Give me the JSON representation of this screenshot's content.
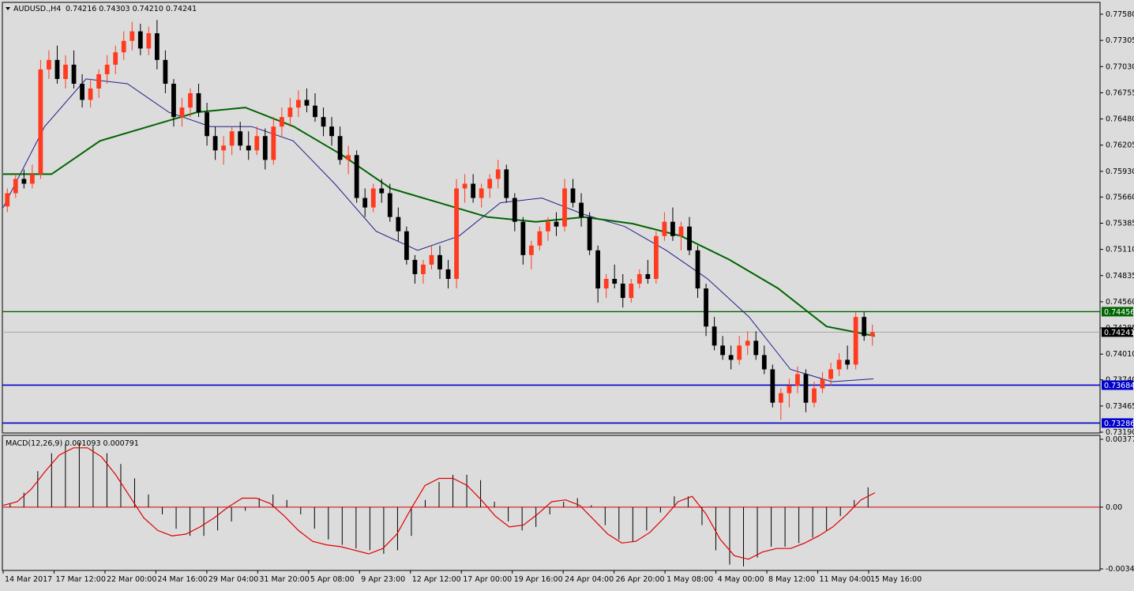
{
  "header": {
    "symbol": "AUDUSD.,H4",
    "ohlc": "0.74216 0.74303 0.74210 0.74241"
  },
  "colors": {
    "background": "#dcdcdc",
    "bull_candle": "#ff3b1f",
    "bear_candle": "#000000",
    "ma_fast": "#1e1e8c",
    "ma_slow": "#006400",
    "h_line_green": "#006400",
    "h_line_blue": "#0000cc",
    "macd_hist": "#000000",
    "macd_signal": "#e00000",
    "zero_line": "#cc0000"
  },
  "chart_data": [
    {
      "type": "candlestick",
      "title": "AUDUSD.,H4",
      "ylim": [
        0.7319,
        0.7758
      ],
      "y_ticks": [
        "0.77580",
        "0.77305",
        "0.77030",
        "0.76755",
        "0.76480",
        "0.76205",
        "0.75930",
        "0.75660",
        "0.75385",
        "0.75110",
        "0.74835",
        "0.74560",
        "0.74285",
        "0.74010",
        "0.73740",
        "0.73465",
        "0.73190"
      ],
      "x_ticks": [
        "14 Mar 2017",
        "17 Mar 12:00",
        "22 Mar 00:00",
        "24 Mar 16:00",
        "29 Mar 04:00",
        "31 Mar 20:00",
        "5 Apr 08:00",
        "9 Apr 23:00",
        "12 Apr 12:00",
        "17 Apr 00:00",
        "19 Apr 16:00",
        "24 Apr 04:00",
        "26 Apr 20:00",
        "1 May 08:00",
        "4 May 00:00",
        "8 May 12:00",
        "11 May 04:00",
        "15 May 16:00"
      ],
      "candles": [
        [
          0.7556,
          0.7575,
          0.755,
          0.757
        ],
        [
          0.757,
          0.759,
          0.7565,
          0.7585
        ],
        [
          0.7585,
          0.7595,
          0.7575,
          0.758
        ],
        [
          0.758,
          0.76,
          0.7575,
          0.759
        ],
        [
          0.759,
          0.771,
          0.7585,
          0.77
        ],
        [
          0.77,
          0.772,
          0.769,
          0.771
        ],
        [
          0.771,
          0.7725,
          0.7685,
          0.769
        ],
        [
          0.769,
          0.7715,
          0.768,
          0.7705
        ],
        [
          0.7705,
          0.772,
          0.768,
          0.7685
        ],
        [
          0.7685,
          0.7695,
          0.766,
          0.7668
        ],
        [
          0.7668,
          0.769,
          0.766,
          0.768
        ],
        [
          0.768,
          0.77,
          0.767,
          0.7695
        ],
        [
          0.7695,
          0.7715,
          0.7685,
          0.7705
        ],
        [
          0.7705,
          0.7725,
          0.7695,
          0.7718
        ],
        [
          0.7718,
          0.774,
          0.771,
          0.773
        ],
        [
          0.773,
          0.775,
          0.772,
          0.774
        ],
        [
          0.774,
          0.7748,
          0.7715,
          0.7722
        ],
        [
          0.7722,
          0.7745,
          0.7715,
          0.7738
        ],
        [
          0.7738,
          0.7752,
          0.77,
          0.771
        ],
        [
          0.771,
          0.772,
          0.7675,
          0.7685
        ],
        [
          0.7685,
          0.769,
          0.764,
          0.765
        ],
        [
          0.765,
          0.767,
          0.764,
          0.766
        ],
        [
          0.766,
          0.768,
          0.765,
          0.7675
        ],
        [
          0.7675,
          0.7685,
          0.765,
          0.7655
        ],
        [
          0.7655,
          0.7665,
          0.762,
          0.763
        ],
        [
          0.763,
          0.764,
          0.7605,
          0.7615
        ],
        [
          0.7615,
          0.763,
          0.76,
          0.762
        ],
        [
          0.762,
          0.764,
          0.761,
          0.7635
        ],
        [
          0.7635,
          0.7645,
          0.7615,
          0.762
        ],
        [
          0.762,
          0.7635,
          0.7605,
          0.7615
        ],
        [
          0.7615,
          0.764,
          0.761,
          0.763
        ],
        [
          0.763,
          0.7638,
          0.7595,
          0.7605
        ],
        [
          0.7605,
          0.765,
          0.76,
          0.764
        ],
        [
          0.764,
          0.766,
          0.763,
          0.765
        ],
        [
          0.765,
          0.767,
          0.764,
          0.766
        ],
        [
          0.766,
          0.7678,
          0.765,
          0.7668
        ],
        [
          0.7668,
          0.768,
          0.7655,
          0.7662
        ],
        [
          0.7662,
          0.7675,
          0.7645,
          0.765
        ],
        [
          0.765,
          0.766,
          0.763,
          0.764
        ],
        [
          0.764,
          0.765,
          0.762,
          0.763
        ],
        [
          0.763,
          0.764,
          0.76,
          0.7605
        ],
        [
          0.7605,
          0.762,
          0.759,
          0.761
        ],
        [
          0.761,
          0.7615,
          0.756,
          0.7565
        ],
        [
          0.7565,
          0.7575,
          0.7545,
          0.7555
        ],
        [
          0.7555,
          0.758,
          0.755,
          0.7575
        ],
        [
          0.7575,
          0.7585,
          0.756,
          0.757
        ],
        [
          0.757,
          0.758,
          0.754,
          0.7545
        ],
        [
          0.7545,
          0.7555,
          0.752,
          0.753
        ],
        [
          0.753,
          0.7535,
          0.7495,
          0.75
        ],
        [
          0.75,
          0.7505,
          0.7475,
          0.7485
        ],
        [
          0.7485,
          0.75,
          0.7475,
          0.7495
        ],
        [
          0.7495,
          0.7515,
          0.749,
          0.7505
        ],
        [
          0.7505,
          0.7515,
          0.748,
          0.749
        ],
        [
          0.749,
          0.75,
          0.747,
          0.748
        ],
        [
          0.748,
          0.7585,
          0.747,
          0.7575
        ],
        [
          0.7575,
          0.759,
          0.756,
          0.758
        ],
        [
          0.758,
          0.759,
          0.756,
          0.7565
        ],
        [
          0.7565,
          0.758,
          0.7555,
          0.7575
        ],
        [
          0.7575,
          0.759,
          0.7565,
          0.7585
        ],
        [
          0.7585,
          0.7605,
          0.7575,
          0.7595
        ],
        [
          0.7595,
          0.76,
          0.756,
          0.7565
        ],
        [
          0.7565,
          0.757,
          0.753,
          0.754
        ],
        [
          0.754,
          0.7545,
          0.7495,
          0.7505
        ],
        [
          0.7505,
          0.752,
          0.749,
          0.7515
        ],
        [
          0.7515,
          0.7535,
          0.751,
          0.753
        ],
        [
          0.753,
          0.7545,
          0.752,
          0.754
        ],
        [
          0.754,
          0.755,
          0.7525,
          0.7535
        ],
        [
          0.7535,
          0.7585,
          0.753,
          0.7575
        ],
        [
          0.7575,
          0.7585,
          0.7555,
          0.756
        ],
        [
          0.756,
          0.757,
          0.7535,
          0.7545
        ],
        [
          0.7545,
          0.755,
          0.7505,
          0.751
        ],
        [
          0.751,
          0.7515,
          0.7455,
          0.747
        ],
        [
          0.747,
          0.7485,
          0.746,
          0.748
        ],
        [
          0.748,
          0.7495,
          0.747,
          0.7475
        ],
        [
          0.7475,
          0.7485,
          0.745,
          0.746
        ],
        [
          0.746,
          0.748,
          0.7455,
          0.7475
        ],
        [
          0.7475,
          0.749,
          0.747,
          0.7485
        ],
        [
          0.7485,
          0.75,
          0.7475,
          0.748
        ],
        [
          0.748,
          0.753,
          0.7475,
          0.7525
        ],
        [
          0.7525,
          0.755,
          0.752,
          0.754
        ],
        [
          0.754,
          0.7555,
          0.752,
          0.7525
        ],
        [
          0.7525,
          0.754,
          0.751,
          0.7535
        ],
        [
          0.7535,
          0.7545,
          0.7505,
          0.751
        ],
        [
          0.751,
          0.7515,
          0.746,
          0.747
        ],
        [
          0.747,
          0.7475,
          0.742,
          0.743
        ],
        [
          0.743,
          0.744,
          0.7405,
          0.741
        ],
        [
          0.741,
          0.742,
          0.7395,
          0.74
        ],
        [
          0.74,
          0.741,
          0.7385,
          0.7395
        ],
        [
          0.7395,
          0.742,
          0.739,
          0.741
        ],
        [
          0.741,
          0.7425,
          0.74,
          0.7415
        ],
        [
          0.7415,
          0.7425,
          0.7395,
          0.74
        ],
        [
          0.74,
          0.741,
          0.738,
          0.7385
        ],
        [
          0.7385,
          0.739,
          0.7345,
          0.735
        ],
        [
          0.735,
          0.7365,
          0.7332,
          0.736
        ],
        [
          0.736,
          0.7375,
          0.7345,
          0.7368
        ],
        [
          0.7368,
          0.7388,
          0.736,
          0.738
        ],
        [
          0.738,
          0.7385,
          0.734,
          0.735
        ],
        [
          0.735,
          0.7372,
          0.7345,
          0.7365
        ],
        [
          0.7365,
          0.7382,
          0.736,
          0.7375
        ],
        [
          0.7375,
          0.7392,
          0.7368,
          0.7385
        ],
        [
          0.7385,
          0.7402,
          0.7378,
          0.7395
        ],
        [
          0.7395,
          0.741,
          0.7385,
          0.739
        ],
        [
          0.739,
          0.7445,
          0.7385,
          0.744
        ],
        [
          0.744,
          0.7445,
          0.7415,
          0.742
        ],
        [
          0.742,
          0.7432,
          0.741,
          0.7424
        ]
      ],
      "ma_fast": [
        0.7555,
        0.764,
        0.769,
        0.7685,
        0.7655,
        0.764,
        0.764,
        0.7625,
        0.758,
        0.753,
        0.751,
        0.7525,
        0.756,
        0.7565,
        0.7548,
        0.7535,
        0.751,
        0.748,
        0.744,
        0.7385,
        0.7372,
        0.7375
      ],
      "ma_slow": [
        0.759,
        0.759,
        0.7625,
        0.764,
        0.7655,
        0.766,
        0.764,
        0.761,
        0.7575,
        0.756,
        0.7545,
        0.754,
        0.7545,
        0.7538,
        0.7525,
        0.75,
        0.747,
        0.743,
        0.742
      ],
      "h_lines": [
        {
          "value": 0.74456,
          "label": "0.74456",
          "color": "green"
        },
        {
          "value": 0.73684,
          "label": "0.73684",
          "color": "blue"
        },
        {
          "value": 0.73286,
          "label": "0.73286",
          "color": "blue"
        }
      ],
      "current_price": {
        "value": 0.74241,
        "label": "0.74241"
      }
    },
    {
      "type": "bar",
      "title": "MACD(12,26,9) 0.001093 0.000791",
      "ylim": [
        -0.003436,
        0.003774
      ],
      "y_ticks": [
        "0.003774",
        "0.00",
        "-0.003436"
      ],
      "histogram": [
        0.0002,
        0.0008,
        0.002,
        0.003,
        0.0035,
        0.0036,
        0.0034,
        0.003,
        0.0024,
        0.0016,
        0.0007,
        -0.0004,
        -0.0012,
        -0.0016,
        -0.0016,
        -0.0013,
        -0.0008,
        -0.0002,
        0.0005,
        0.0007,
        0.0004,
        -0.0004,
        -0.0012,
        -0.0018,
        -0.0021,
        -0.0023,
        -0.0024,
        -0.0026,
        -0.0024,
        -0.0016,
        0.0004,
        0.0014,
        0.0018,
        0.0018,
        0.0015,
        0.0003,
        -0.0008,
        -0.0013,
        -0.0011,
        -0.0004,
        0.0003,
        0.0005,
        0.0001,
        -0.001,
        -0.0018,
        -0.0019,
        -0.0013,
        -0.0003,
        0.0006,
        0.0006,
        -0.001,
        -0.0024,
        -0.0032,
        -0.0033,
        -0.0028,
        -0.0022,
        -0.0022,
        -0.002,
        -0.0017,
        -0.0013,
        -0.0005,
        0.0004,
        0.0011
      ],
      "signal": [
        0.0001,
        0.0003,
        0.001,
        0.002,
        0.0029,
        0.0033,
        0.0033,
        0.0028,
        0.0018,
        0.0006,
        -0.0006,
        -0.0013,
        -0.0016,
        -0.0015,
        -0.0011,
        -0.0006,
        0.0,
        0.0005,
        0.0005,
        0.0002,
        -0.0005,
        -0.0013,
        -0.0019,
        -0.0021,
        -0.0022,
        -0.0024,
        -0.0026,
        -0.0023,
        -0.0015,
        -0.0001,
        0.0012,
        0.0016,
        0.0016,
        0.0012,
        0.0004,
        -0.0005,
        -0.0011,
        -0.001,
        -0.0004,
        0.0003,
        0.0004,
        0.0001,
        -0.0007,
        -0.0015,
        -0.002,
        -0.0019,
        -0.0014,
        -0.0006,
        0.0003,
        0.0006,
        -0.0004,
        -0.0018,
        -0.0027,
        -0.0029,
        -0.0025,
        -0.0023,
        -0.0023,
        -0.002,
        -0.0016,
        -0.0011,
        -0.0004,
        0.0004,
        0.0008
      ]
    }
  ]
}
